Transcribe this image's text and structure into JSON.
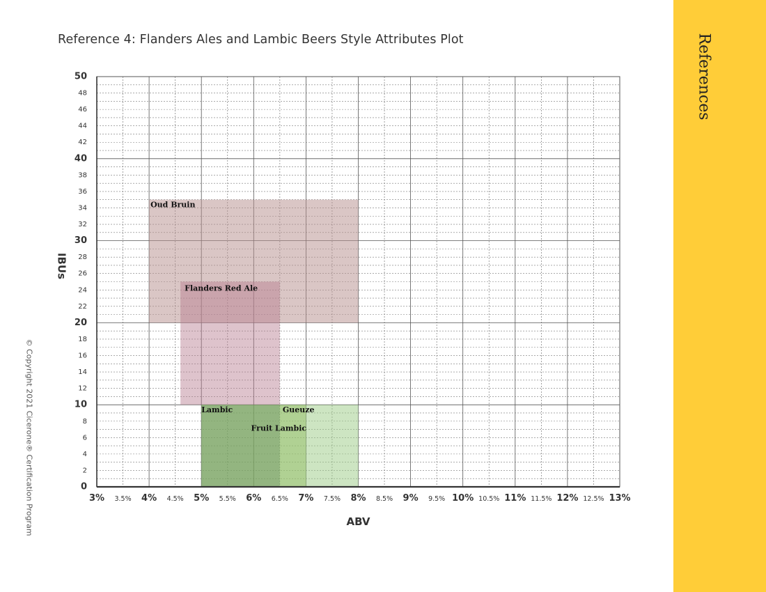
{
  "page": {
    "title": "Reference 4: Flanders Ales and Lambic Beers Style Attributes Plot",
    "sidebar_label": "References",
    "copyright": "© Copyright 2021 Cicerone® Certification Program"
  },
  "chart_data": {
    "type": "range-box",
    "title": "Reference 4: Flanders Ales and Lambic Beers Style Attributes Plot",
    "xlabel": "ABV",
    "ylabel": "IBUs",
    "xlim": [
      3,
      13
    ],
    "ylim": [
      0,
      50
    ],
    "x_ticks": [
      {
        "value": 3,
        "label": "3%",
        "major": true
      },
      {
        "value": 3.5,
        "label": "3.5%",
        "major": false
      },
      {
        "value": 4,
        "label": "4%",
        "major": true
      },
      {
        "value": 4.5,
        "label": "4.5%",
        "major": false
      },
      {
        "value": 5,
        "label": "5%",
        "major": true
      },
      {
        "value": 5.5,
        "label": "5.5%",
        "major": false
      },
      {
        "value": 6,
        "label": "6%",
        "major": true
      },
      {
        "value": 6.5,
        "label": "6.5%",
        "major": false
      },
      {
        "value": 7,
        "label": "7%",
        "major": true
      },
      {
        "value": 7.5,
        "label": "7.5%",
        "major": false
      },
      {
        "value": 8,
        "label": "8%",
        "major": true
      },
      {
        "value": 8.5,
        "label": "8.5%",
        "major": false
      },
      {
        "value": 9,
        "label": "9%",
        "major": true
      },
      {
        "value": 9.5,
        "label": "9.5%",
        "major": false
      },
      {
        "value": 10,
        "label": "10%",
        "major": true
      },
      {
        "value": 10.5,
        "label": "10.5%",
        "major": false
      },
      {
        "value": 11,
        "label": "11%",
        "major": true
      },
      {
        "value": 11.5,
        "label": "11.5%",
        "major": false
      },
      {
        "value": 12,
        "label": "12%",
        "major": true
      },
      {
        "value": 12.5,
        "label": "12.5%",
        "major": false
      },
      {
        "value": 13,
        "label": "13%",
        "major": true
      }
    ],
    "y_ticks": [
      {
        "value": 0,
        "label": "0",
        "major": true
      },
      {
        "value": 2,
        "label": "2",
        "major": false
      },
      {
        "value": 4,
        "label": "4",
        "major": false
      },
      {
        "value": 6,
        "label": "6",
        "major": false
      },
      {
        "value": 8,
        "label": "8",
        "major": false
      },
      {
        "value": 10,
        "label": "10",
        "major": true
      },
      {
        "value": 12,
        "label": "12",
        "major": false
      },
      {
        "value": 14,
        "label": "14",
        "major": false
      },
      {
        "value": 16,
        "label": "16",
        "major": false
      },
      {
        "value": 18,
        "label": "18",
        "major": false
      },
      {
        "value": 20,
        "label": "20",
        "major": true
      },
      {
        "value": 22,
        "label": "22",
        "major": false
      },
      {
        "value": 24,
        "label": "24",
        "major": false
      },
      {
        "value": 26,
        "label": "26",
        "major": false
      },
      {
        "value": 28,
        "label": "28",
        "major": false
      },
      {
        "value": 30,
        "label": "30",
        "major": true
      },
      {
        "value": 32,
        "label": "32",
        "major": false
      },
      {
        "value": 34,
        "label": "34",
        "major": false
      },
      {
        "value": 36,
        "label": "36",
        "major": false
      },
      {
        "value": 38,
        "label": "38",
        "major": false
      },
      {
        "value": 40,
        "label": "40",
        "major": true
      },
      {
        "value": 42,
        "label": "42",
        "major": false
      },
      {
        "value": 44,
        "label": "44",
        "major": false
      },
      {
        "value": 46,
        "label": "46",
        "major": false
      },
      {
        "value": 48,
        "label": "48",
        "major": false
      },
      {
        "value": 50,
        "label": "50",
        "major": true
      }
    ],
    "grid": true,
    "series": [
      {
        "name": "Oud Bruin",
        "abv": [
          4,
          8
        ],
        "ibu": [
          20,
          35
        ],
        "color": "#b58e8b",
        "opacity": 0.5
      },
      {
        "name": "Flanders Red Ale",
        "abv": [
          4.6,
          6.5
        ],
        "ibu": [
          10,
          25
        ],
        "color": "#b57a8e",
        "opacity": 0.45
      },
      {
        "name": "Lambic",
        "abv": [
          5,
          6.5
        ],
        "ibu": [
          0,
          10
        ],
        "color": "#5f8a6a",
        "opacity": 0.65
      },
      {
        "name": "Gueuze",
        "abv": [
          6.5,
          8
        ],
        "ibu": [
          0,
          10
        ],
        "color": "#9ccb86",
        "opacity": 0.5
      },
      {
        "name": "Fruit Lambic",
        "abv": [
          5,
          7
        ],
        "ibu": [
          0,
          10
        ],
        "color": "#8fb85a",
        "opacity": 0.45
      }
    ]
  }
}
